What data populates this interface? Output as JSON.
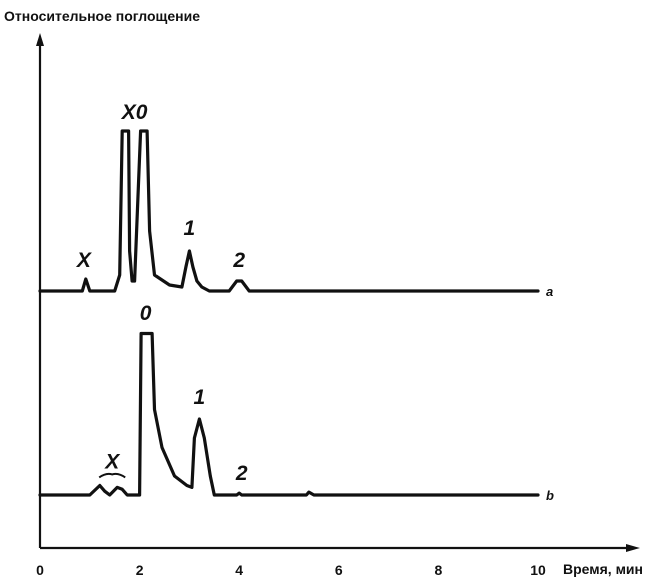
{
  "chart_data": {
    "type": "line",
    "ylabel": "Относительное поглощение",
    "xlabel": "Время, мин",
    "xlim": [
      0,
      10.5
    ],
    "x_ticks": [
      "0",
      "2",
      "4",
      "6",
      "8",
      "10"
    ],
    "series": [
      {
        "name": "a",
        "points": [
          [
            0,
            0
          ],
          [
            0.85,
            0
          ],
          [
            0.92,
            0.06
          ],
          [
            1.0,
            0
          ],
          [
            1.5,
            0
          ],
          [
            1.6,
            0.08
          ],
          [
            1.65,
            0.8
          ],
          [
            1.78,
            0.8
          ],
          [
            1.8,
            0.2
          ],
          [
            1.85,
            0.05
          ],
          [
            1.9,
            0.05
          ],
          [
            2.02,
            0.8
          ],
          [
            2.15,
            0.8
          ],
          [
            2.2,
            0.3
          ],
          [
            2.3,
            0.08
          ],
          [
            2.6,
            0.03
          ],
          [
            2.85,
            0.02
          ],
          [
            2.93,
            0.12
          ],
          [
            3.0,
            0.2
          ],
          [
            3.07,
            0.12
          ],
          [
            3.15,
            0.05
          ],
          [
            3.25,
            0.02
          ],
          [
            3.4,
            0
          ],
          [
            3.8,
            0
          ],
          [
            3.95,
            0.05
          ],
          [
            4.05,
            0.05
          ],
          [
            4.2,
            0
          ],
          [
            10.0,
            0
          ]
        ],
        "clipped_peaks": true
      },
      {
        "name": "b",
        "points": [
          [
            0,
            0
          ],
          [
            1.0,
            0
          ],
          [
            1.2,
            0.05
          ],
          [
            1.3,
            0.02
          ],
          [
            1.4,
            0
          ],
          [
            1.55,
            0.04
          ],
          [
            1.65,
            0.03
          ],
          [
            1.75,
            0
          ],
          [
            2.0,
            0
          ],
          [
            2.03,
            0.85
          ],
          [
            2.25,
            0.85
          ],
          [
            2.3,
            0.45
          ],
          [
            2.45,
            0.25
          ],
          [
            2.7,
            0.1
          ],
          [
            2.95,
            0.05
          ],
          [
            3.05,
            0.04
          ],
          [
            3.1,
            0.3
          ],
          [
            3.2,
            0.4
          ],
          [
            3.3,
            0.3
          ],
          [
            3.42,
            0.1
          ],
          [
            3.5,
            0
          ],
          [
            3.95,
            0
          ],
          [
            4.0,
            0.01
          ],
          [
            4.05,
            0
          ],
          [
            5.35,
            0
          ],
          [
            5.4,
            0.015
          ],
          [
            5.5,
            0
          ],
          [
            10.0,
            0
          ]
        ],
        "clipped_peaks": true
      }
    ],
    "peak_labels": [
      {
        "series": "a",
        "text": "X",
        "x": 0.88,
        "y": 0.12
      },
      {
        "series": "a",
        "text": "X0",
        "x": 1.9,
        "y": 0.86
      },
      {
        "series": "a",
        "text": "1",
        "x": 3.0,
        "y": 0.28
      },
      {
        "series": "a",
        "text": "2",
        "x": 4.0,
        "y": 0.12
      },
      {
        "series": "b",
        "text": "X",
        "x": 1.45,
        "y": 0.14
      },
      {
        "series": "b",
        "text": "0",
        "x": 2.12,
        "y": 0.92
      },
      {
        "series": "b",
        "text": "1",
        "x": 3.2,
        "y": 0.48
      },
      {
        "series": "b",
        "text": "2",
        "x": 4.05,
        "y": 0.08
      }
    ],
    "trace_labels": [
      "a",
      "b"
    ],
    "grid": false,
    "legend": "none"
  }
}
